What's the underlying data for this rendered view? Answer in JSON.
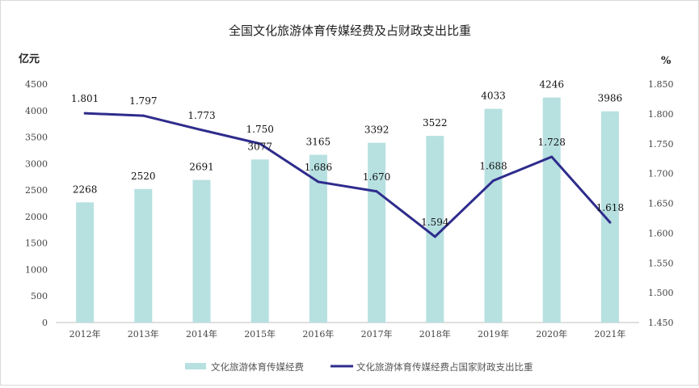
{
  "chart_data": {
    "type": "bar+line",
    "title": "全国文化旅游体育传媒经费及占财政支出比重",
    "categories": [
      "2012年",
      "2013年",
      "2014年",
      "2015年",
      "2016年",
      "2017年",
      "2018年",
      "2019年",
      "2020年",
      "2021年"
    ],
    "series": [
      {
        "name": "文化旅游体育传媒经费",
        "type": "bar",
        "axis": "left",
        "color": "#b7e0e1",
        "values": [
          2268,
          2520,
          2691,
          3077,
          3165,
          3392,
          3522,
          4033,
          4246,
          3986
        ],
        "labels": [
          "2268",
          "2520",
          "2691",
          "3077",
          "3165",
          "3392",
          "3522",
          "4033",
          "4246",
          "3986"
        ]
      },
      {
        "name": "文化旅游体育传媒经费占国家财政支出比重",
        "type": "line",
        "axis": "right",
        "color": "#2e2c8c",
        "values": [
          1.801,
          1.797,
          1.773,
          1.75,
          1.686,
          1.67,
          1.594,
          1.688,
          1.728,
          1.618
        ],
        "labels": [
          "1.801",
          "1.797",
          "1.773",
          "1.750",
          "1.686",
          "1.670",
          "1.594",
          "1.688",
          "1.728",
          "1.618"
        ]
      }
    ],
    "ylabel_left": "亿元",
    "ylabel_right": "%",
    "ylim_left": [
      0,
      4500
    ],
    "yticks_left": [
      "0",
      "500",
      "1000",
      "1500",
      "2000",
      "2500",
      "3000",
      "3500",
      "4000",
      "4500"
    ],
    "ylim_right": [
      1.45,
      1.85
    ],
    "yticks_right": [
      "1.450",
      "1.500",
      "1.550",
      "1.600",
      "1.650",
      "1.700",
      "1.750",
      "1.800",
      "1.850"
    ],
    "grid": false,
    "legend_position": "bottom"
  }
}
